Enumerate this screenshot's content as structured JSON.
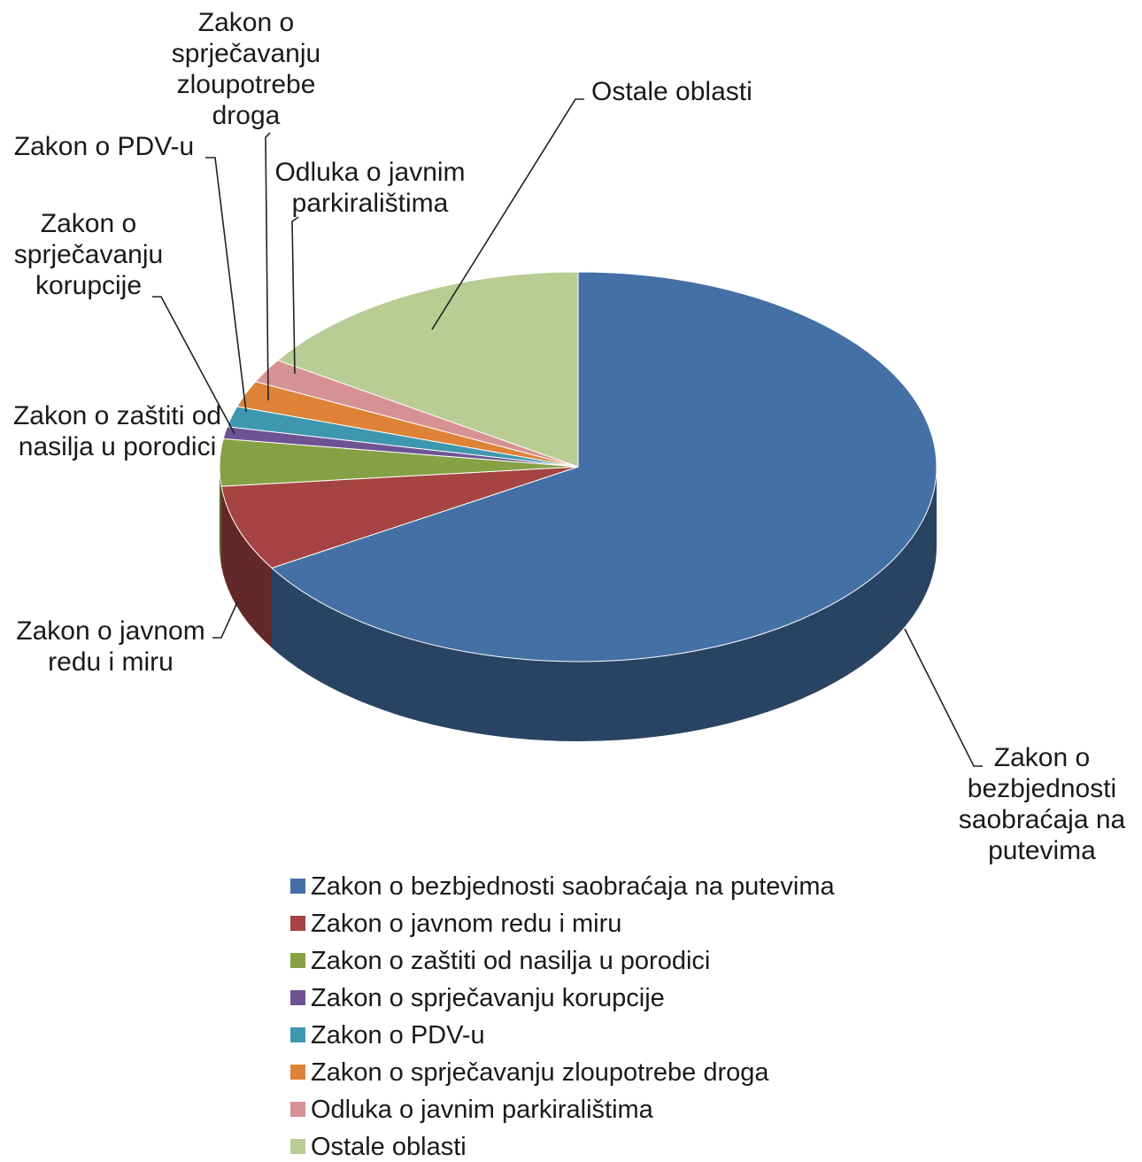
{
  "chart_data": {
    "type": "pie3d",
    "categories": [
      "Zakon o bezbjednosti saobraćaja na putevima",
      "Zakon o javnom redu i miru",
      "Zakon o zaštiti od nasilja u porodici",
      "Zakon o sprječavanju korupcije",
      "Zakon o PDV-u",
      "Zakon o sprječavanju zloupotrebe droga",
      "Odluka o javnim parkiralištima",
      "Ostale oblasti"
    ],
    "values": [
      66.3,
      7.1,
      3.9,
      1.0,
      1.7,
      2.2,
      2.0,
      15.8
    ],
    "colors": [
      "#4470a5",
      "#a54442",
      "#86a044",
      "#6e5394",
      "#3e97af",
      "#dd8237",
      "#d69292",
      "#b8cc94"
    ],
    "legend": "bottom"
  }
}
